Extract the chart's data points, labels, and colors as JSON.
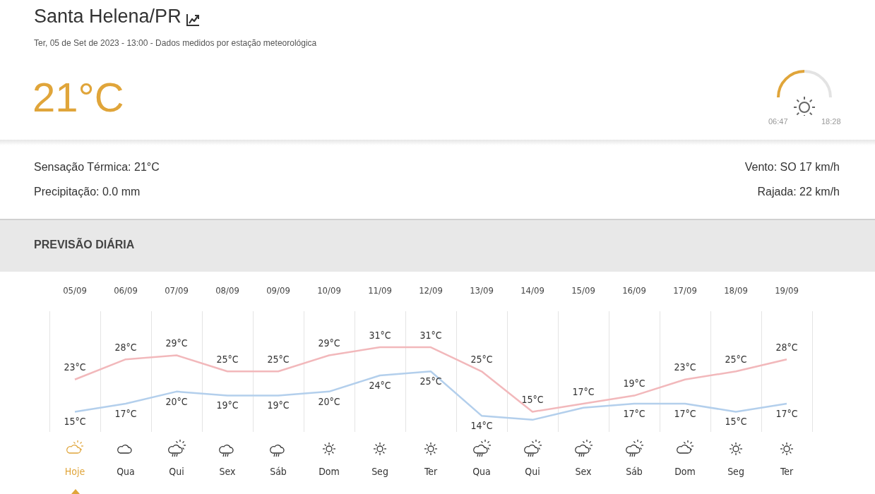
{
  "chart_data": {
    "type": "line",
    "title": "Santa Helena/PR",
    "subtitle": "Ter, 05 de Set de 2023 - 13:00 - Dados medidos por estação meteorológica",
    "categories": [
      "05/09",
      "06/09",
      "07/09",
      "08/09",
      "09/09",
      "10/09",
      "11/09",
      "12/09",
      "13/09",
      "14/09",
      "15/09",
      "16/09",
      "17/09",
      "18/09",
      "19/09"
    ],
    "series": [
      {
        "color": "#f2b8bb",
        "values": [
          23,
          28,
          29,
          25,
          25,
          29,
          31,
          31,
          25,
          15,
          17,
          19,
          23,
          25,
          28
        ],
        "value_labels": [
          "23°C",
          "28°C",
          "29°C",
          "25°C",
          "25°C",
          "29°C",
          "31°C",
          "31°C",
          "25°C",
          "15°C",
          "17°C",
          "19°C",
          "23°C",
          "25°C",
          "28°C"
        ]
      },
      {
        "color": "#b3cfec",
        "values": [
          15,
          17,
          20,
          19,
          19,
          20,
          24,
          25,
          14,
          13,
          16,
          17,
          17,
          15,
          17
        ],
        "value_labels": [
          "15°C",
          "17°C",
          "20°C",
          "19°C",
          "19°C",
          "20°C",
          "24°C",
          "25°C",
          "14°C",
          null,
          null,
          "17°C",
          "17°C",
          "15°C",
          "17°C"
        ]
      }
    ],
    "ylim": [
      10,
      40
    ],
    "grid": "x",
    "legend": false,
    "marker": "none",
    "line_style": "solid",
    "annotations": [
      "21°C",
      "06:47",
      "18:28",
      "Sensação Térmica: 21°C",
      "Precipitação: 0.0 mm",
      "Vento: SO 17 km/h",
      "Rajada: 22 km/h",
      "PREVISÃO DIÁRIA",
      "Hoje",
      "Qua",
      "Qui",
      "Sex",
      "Sáb",
      "Dom",
      "Seg",
      "Ter",
      "Qua",
      "Qui",
      "Sex",
      "Sáb",
      "Dom",
      "Seg",
      "Ter"
    ]
  }
}
